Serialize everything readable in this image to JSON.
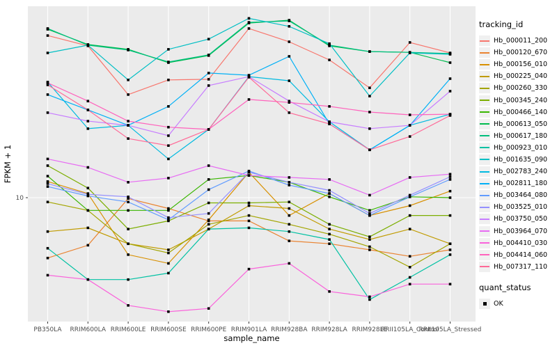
{
  "figure": {
    "background": "#FFFFFF",
    "panel_background": "#EBEBEB",
    "grid_color": "#FFFFFF",
    "axis_text_color": "#4D4D4D",
    "title_text_color": "#000000",
    "tick_color": "#333333",
    "point_color": "#000000"
  },
  "axes": {
    "y_label": "FPKM + 1",
    "x_label": "sample_name",
    "y_tick_label": "10"
  },
  "legend": {
    "tracking_title": "tracking_id",
    "quant_title": "quant_status",
    "quant_items": [
      {
        "label": "OK"
      }
    ]
  },
  "chart_data": {
    "type": "line",
    "title": "",
    "xlabel": "sample_name",
    "ylabel": "FPKM + 1",
    "y_scale": "log10",
    "y_ticks": [
      10
    ],
    "ylim_approx": [
      2.3,
      95
    ],
    "grid": "major-on",
    "legend_position": "right",
    "point_shape": "square",
    "categories": [
      "PB350LA",
      "RRIM600LA",
      "RRIM600LE",
      "RRIM600SE",
      "RRIM600PE",
      "RRIM901LA",
      "RRIM928BA",
      "RRIM928LA",
      "RRIM928LE",
      "RRII105LA_Control",
      "RRII105LA_Stressed"
    ],
    "series": [
      {
        "name": "Hb_000011_200",
        "color": "#F8766D",
        "values": [
          67.9,
          60.1,
          33.8,
          40.2,
          40.5,
          73.8,
          63.1,
          50.9,
          36.6,
          62.6,
          55.3
        ]
      },
      {
        "name": "Hb_000120_670",
        "color": "#EA8331",
        "values": [
          4.9,
          5.7,
          9.9,
          8.8,
          7.6,
          7.6,
          6.0,
          5.8,
          5.4,
          5.0,
          5.4
        ]
      },
      {
        "name": "Hb_000156_010",
        "color": "#D89000",
        "values": [
          12.1,
          10.5,
          5.1,
          4.6,
          7.7,
          13.5,
          8.1,
          10.5,
          8.1,
          9.1,
          10.8
        ]
      },
      {
        "name": "Hb_000225_040",
        "color": "#C09B00",
        "values": [
          6.7,
          7.0,
          5.8,
          5.4,
          6.9,
          9.1,
          8.8,
          6.9,
          6.1,
          6.9,
          5.8
        ]
      },
      {
        "name": "Hb_000260_330",
        "color": "#A3A500",
        "values": [
          9.5,
          8.6,
          5.8,
          5.2,
          7.3,
          8.1,
          7.3,
          6.5,
          5.6,
          4.4,
          5.8
        ]
      },
      {
        "name": "Hb_000345_240",
        "color": "#7CAE00",
        "values": [
          14.6,
          11.2,
          6.9,
          7.6,
          9.4,
          9.4,
          9.5,
          7.3,
          6.3,
          8.1,
          8.1
        ]
      },
      {
        "name": "Hb_000466_140",
        "color": "#39B600",
        "values": [
          12.9,
          8.6,
          8.6,
          8.6,
          12.4,
          13.0,
          12.0,
          10.1,
          8.6,
          10.1,
          10.0
        ]
      },
      {
        "name": "Hb_000613_050",
        "color": "#00BB4E",
        "values": [
          73.1,
          61.1,
          57.7,
          49.3,
          53.6,
          78.7,
          81.4,
          60.1,
          56.2,
          55.7,
          49.3
        ]
      },
      {
        "name": "Hb_000617_180",
        "color": "#00BF7D",
        "values": [
          73.8,
          60.6,
          57.2,
          49.7,
          54.0,
          79.4,
          80.7,
          60.6,
          56.2,
          55.7,
          54.9
        ]
      },
      {
        "name": "Hb_000923_010",
        "color": "#00C1A3",
        "values": [
          5.5,
          3.8,
          3.8,
          4.1,
          6.9,
          7.0,
          6.7,
          6.1,
          3.0,
          3.9,
          5.1
        ]
      },
      {
        "name": "Hb_001635_090",
        "color": "#00BFC4",
        "values": [
          55.3,
          60.6,
          40.2,
          57.7,
          65.1,
          83.2,
          75.7,
          61.7,
          33.2,
          55.3,
          54.4
        ]
      },
      {
        "name": "Hb_002783_240",
        "color": "#00BAE0",
        "values": [
          39.2,
          22.6,
          23.5,
          15.8,
          22.4,
          41.8,
          39.8,
          24.5,
          17.6,
          23.5,
          26.8
        ]
      },
      {
        "name": "Hb_002811_180",
        "color": "#00B0F6",
        "values": [
          33.8,
          28.2,
          23.5,
          29.4,
          43.6,
          42.5,
          53.1,
          23.9,
          17.6,
          23.5,
          40.8
        ]
      },
      {
        "name": "Hb_003464_080",
        "color": "#619CFF",
        "values": [
          11.4,
          10.2,
          9.5,
          7.7,
          11.0,
          13.7,
          11.6,
          10.5,
          8.1,
          10.1,
          12.4
        ]
      },
      {
        "name": "Hb_003525_010",
        "color": "#9590FF",
        "values": [
          11.8,
          10.4,
          10.1,
          7.9,
          8.3,
          13.5,
          12.0,
          10.9,
          8.3,
          10.3,
          12.8
        ]
      },
      {
        "name": "Hb_003750_050",
        "color": "#C77CFF",
        "values": [
          27.3,
          24.7,
          23.5,
          20.8,
          37.6,
          41.8,
          31.3,
          24.5,
          22.6,
          23.5,
          35.2
        ]
      },
      {
        "name": "Hb_003964_070",
        "color": "#E76BF3",
        "values": [
          15.8,
          14.3,
          12.0,
          12.6,
          14.6,
          13.0,
          12.7,
          12.4,
          10.3,
          12.7,
          13.2
        ]
      },
      {
        "name": "Hb_004410_030",
        "color": "#FA62DB",
        "values": [
          4.0,
          3.8,
          2.8,
          2.6,
          2.7,
          4.3,
          4.6,
          3.3,
          3.1,
          3.6,
          3.6
        ]
      },
      {
        "name": "Hb_004414_060",
        "color": "#FF62BC",
        "values": [
          38.8,
          31.3,
          24.7,
          23.0,
          22.4,
          31.9,
          30.8,
          29.4,
          27.5,
          26.6,
          26.8
        ]
      },
      {
        "name": "Hb_007317_110",
        "color": "#FF6A98",
        "values": [
          37.9,
          28.2,
          20.1,
          18.5,
          22.4,
          41.5,
          27.3,
          23.9,
          17.6,
          20.6,
          26.4
        ]
      }
    ]
  }
}
